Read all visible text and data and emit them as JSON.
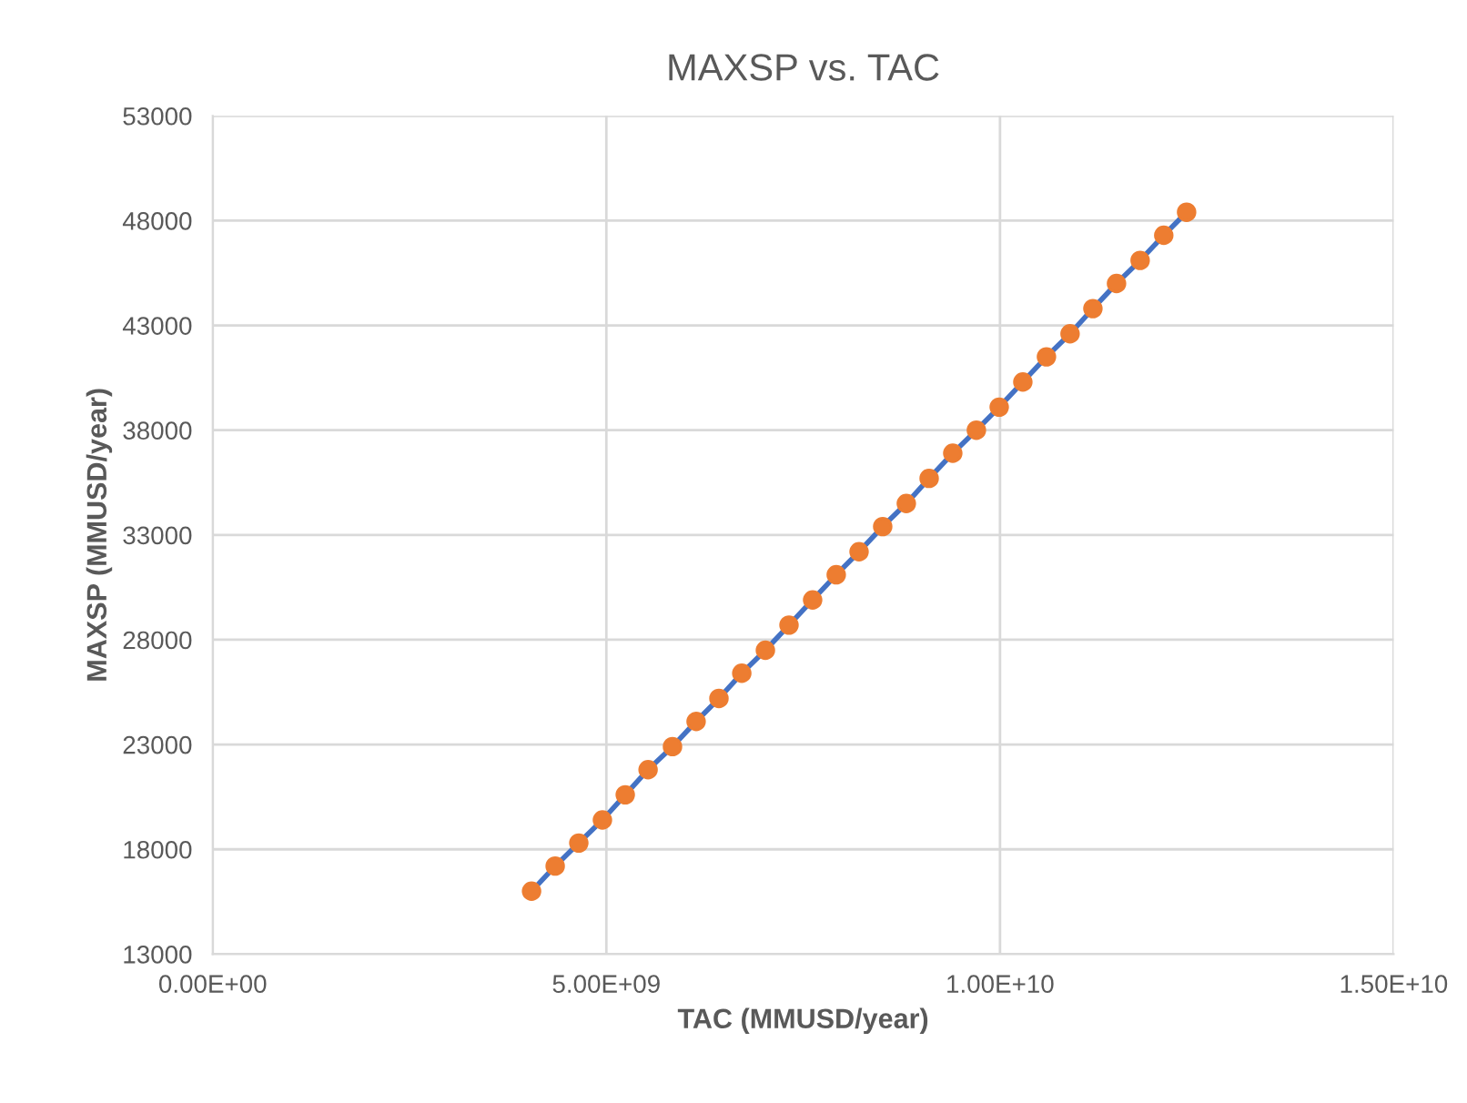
{
  "chart_data": {
    "type": "line",
    "title": "MAXSP vs. TAC",
    "xlabel": "TAC (MMUSD/year)",
    "ylabel": "MAXSP (MMUSD/year)",
    "xlim": [
      0,
      15000000000
    ],
    "ylim": [
      13000,
      53000
    ],
    "xticks": [
      {
        "value": 0,
        "label": "0.00E+00"
      },
      {
        "value": 5000000000,
        "label": "5.00E+09"
      },
      {
        "value": 10000000000,
        "label": "1.00E+10"
      },
      {
        "value": 15000000000,
        "label": "1.50E+10"
      }
    ],
    "yticks": [
      13000,
      18000,
      23000,
      28000,
      33000,
      38000,
      43000,
      48000,
      53000
    ],
    "grid": true,
    "line_style": "solid",
    "series": [
      {
        "color": "#4472c4",
        "marker": "none",
        "x": [
          4050000000,
          4350000000,
          4650000000,
          4950000000,
          5240000000,
          5530000000,
          5840000000,
          6140000000,
          6430000000,
          6720000000,
          7020000000,
          7320000000,
          7620000000,
          7920000000,
          8210000000,
          8510000000,
          8810000000,
          9100000000,
          9400000000,
          9700000000,
          9990000000,
          10290000000,
          10590000000,
          10890000000,
          11180000000,
          11480000000,
          11780000000,
          12080000000,
          12370000000
        ],
        "values": [
          16000,
          17200,
          18300,
          19400,
          20600,
          21800,
          22900,
          24100,
          25200,
          26400,
          27500,
          28700,
          29900,
          31100,
          32200,
          33400,
          34500,
          35700,
          36900,
          38000,
          39100,
          40300,
          41500,
          42600,
          43800,
          45000,
          46100,
          47300,
          48400
        ]
      },
      {
        "type": "scatter",
        "color": "#ed7d31",
        "marker": "circle",
        "x": [
          4050000000,
          4350000000,
          4650000000,
          4950000000,
          5240000000,
          5530000000,
          5840000000,
          6140000000,
          6430000000,
          6720000000,
          7020000000,
          7320000000,
          7620000000,
          7920000000,
          8210000000,
          8510000000,
          8810000000,
          9100000000,
          9400000000,
          9700000000,
          9990000000,
          10290000000,
          10590000000,
          10890000000,
          11180000000,
          11480000000,
          11780000000,
          12080000000,
          12370000000
        ],
        "values": [
          16000,
          17200,
          18300,
          19400,
          20600,
          21800,
          22900,
          24100,
          25200,
          26400,
          27500,
          28700,
          29900,
          31100,
          32200,
          33400,
          34500,
          35700,
          36900,
          38000,
          39100,
          40300,
          41500,
          42600,
          43800,
          45000,
          46100,
          47300,
          48400
        ]
      }
    ]
  }
}
